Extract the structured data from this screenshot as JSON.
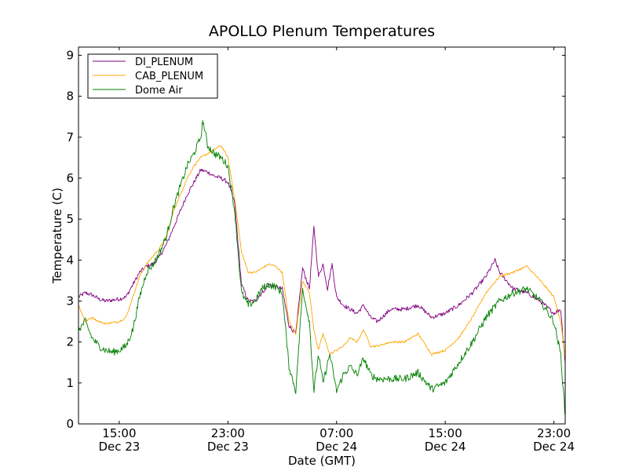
{
  "chart_data": {
    "type": "line",
    "title": "APOLLO Plenum Temperatures",
    "xlabel": "Date (GMT)",
    "ylabel": "Temperature (C)",
    "xlim": [
      "2011-12-23 12:00",
      "2011-12-24 23:50"
    ],
    "ylim": [
      0,
      9.2
    ],
    "yticks": [
      0,
      1,
      2,
      3,
      4,
      5,
      6,
      7,
      8,
      9
    ],
    "xticks": [
      {
        "t": "2011-12-23 15:00",
        "label1": "15:00",
        "label2": "Dec 23"
      },
      {
        "t": "2011-12-23 23:00",
        "label1": "23:00",
        "label2": "Dec 23"
      },
      {
        "t": "2011-12-24 07:00",
        "label1": "07:00",
        "label2": "Dec 24"
      },
      {
        "t": "2011-12-24 15:00",
        "label1": "15:00",
        "label2": "Dec 24"
      },
      {
        "t": "2011-12-24 23:00",
        "label1": "23:00",
        "label2": "Dec 24"
      }
    ],
    "grid": false,
    "legend": {
      "position": "top-left"
    },
    "series": [
      {
        "name": "DI_PLENUM",
        "color": "#800080",
        "points": [
          [
            "2011-12-23 12:00",
            3.1
          ],
          [
            "2011-12-23 12:30",
            3.2
          ],
          [
            "2011-12-23 13:00",
            3.15
          ],
          [
            "2011-12-23 13:30",
            3.05
          ],
          [
            "2011-12-23 14:00",
            3.0
          ],
          [
            "2011-12-23 15:00",
            3.05
          ],
          [
            "2011-12-23 15:30",
            3.1
          ],
          [
            "2011-12-23 16:00",
            3.4
          ],
          [
            "2011-12-23 16:30",
            3.7
          ],
          [
            "2011-12-23 17:00",
            3.85
          ],
          [
            "2011-12-23 17:30",
            3.9
          ],
          [
            "2011-12-23 18:00",
            4.1
          ],
          [
            "2011-12-23 18:30",
            4.4
          ],
          [
            "2011-12-23 19:00",
            4.8
          ],
          [
            "2011-12-23 19:30",
            5.2
          ],
          [
            "2011-12-23 20:00",
            5.6
          ],
          [
            "2011-12-23 20:30",
            5.9
          ],
          [
            "2011-12-23 21:00",
            6.2
          ],
          [
            "2011-12-23 21:30",
            6.15
          ],
          [
            "2011-12-23 22:00",
            6.05
          ],
          [
            "2011-12-23 22:30",
            6.0
          ],
          [
            "2011-12-23 23:00",
            5.9
          ],
          [
            "2011-12-23 23:30",
            5.4
          ],
          [
            "2011-12-24 00:00",
            3.4
          ],
          [
            "2011-12-24 00:30",
            3.0
          ],
          [
            "2011-12-24 01:00",
            3.0
          ],
          [
            "2011-12-24 01:30",
            3.2
          ],
          [
            "2011-12-24 02:00",
            3.4
          ],
          [
            "2011-12-24 02:30",
            3.35
          ],
          [
            "2011-12-24 03:00",
            3.3
          ],
          [
            "2011-12-24 03:30",
            2.4
          ],
          [
            "2011-12-24 04:00",
            2.2
          ],
          [
            "2011-12-24 04:30",
            3.8
          ],
          [
            "2011-12-24 05:00",
            3.3
          ],
          [
            "2011-12-24 05:20",
            4.8
          ],
          [
            "2011-12-24 05:40",
            3.6
          ],
          [
            "2011-12-24 06:00",
            3.9
          ],
          [
            "2011-12-24 06:20",
            3.3
          ],
          [
            "2011-12-24 06:40",
            3.9
          ],
          [
            "2011-12-24 07:00",
            3.1
          ],
          [
            "2011-12-24 07:30",
            2.9
          ],
          [
            "2011-12-24 08:00",
            2.8
          ],
          [
            "2011-12-24 08:30",
            2.7
          ],
          [
            "2011-12-24 09:00",
            2.9
          ],
          [
            "2011-12-24 09:30",
            2.6
          ],
          [
            "2011-12-24 10:00",
            2.5
          ],
          [
            "2011-12-24 11:00",
            2.8
          ],
          [
            "2011-12-24 12:00",
            2.8
          ],
          [
            "2011-12-24 13:00",
            2.9
          ],
          [
            "2011-12-24 14:00",
            2.6
          ],
          [
            "2011-12-24 15:00",
            2.7
          ],
          [
            "2011-12-24 16:00",
            2.9
          ],
          [
            "2011-12-24 17:00",
            3.2
          ],
          [
            "2011-12-24 18:00",
            3.6
          ],
          [
            "2011-12-24 18:40",
            4.0
          ],
          [
            "2011-12-24 19:00",
            3.7
          ],
          [
            "2011-12-24 20:00",
            3.3
          ],
          [
            "2011-12-24 21:00",
            3.2
          ],
          [
            "2011-12-24 22:00",
            3.0
          ],
          [
            "2011-12-24 23:00",
            2.7
          ],
          [
            "2011-12-24 23:30",
            2.8
          ],
          [
            "2011-12-24 23:50",
            1.5
          ]
        ]
      },
      {
        "name": "CAB_PLENUM",
        "color": "#ffa500",
        "points": [
          [
            "2011-12-23 12:00",
            2.9
          ],
          [
            "2011-12-23 12:30",
            2.5
          ],
          [
            "2011-12-23 13:00",
            2.6
          ],
          [
            "2011-12-23 13:30",
            2.5
          ],
          [
            "2011-12-23 14:00",
            2.45
          ],
          [
            "2011-12-23 15:00",
            2.5
          ],
          [
            "2011-12-23 15:30",
            2.6
          ],
          [
            "2011-12-23 16:00",
            3.1
          ],
          [
            "2011-12-23 16:30",
            3.6
          ],
          [
            "2011-12-23 17:00",
            3.9
          ],
          [
            "2011-12-23 17:30",
            4.1
          ],
          [
            "2011-12-23 18:00",
            4.3
          ],
          [
            "2011-12-23 18:30",
            4.6
          ],
          [
            "2011-12-23 19:00",
            5.2
          ],
          [
            "2011-12-23 19:30",
            5.6
          ],
          [
            "2011-12-23 20:00",
            6.0
          ],
          [
            "2011-12-23 20:30",
            6.3
          ],
          [
            "2011-12-23 21:00",
            6.5
          ],
          [
            "2011-12-23 21:30",
            6.6
          ],
          [
            "2011-12-23 22:00",
            6.7
          ],
          [
            "2011-12-23 22:30",
            6.8
          ],
          [
            "2011-12-23 23:00",
            6.5
          ],
          [
            "2011-12-23 23:30",
            5.5
          ],
          [
            "2011-12-24 00:00",
            4.2
          ],
          [
            "2011-12-24 00:30",
            3.7
          ],
          [
            "2011-12-24 01:00",
            3.7
          ],
          [
            "2011-12-24 01:30",
            3.8
          ],
          [
            "2011-12-24 02:00",
            3.9
          ],
          [
            "2011-12-24 02:30",
            3.85
          ],
          [
            "2011-12-24 03:00",
            3.7
          ],
          [
            "2011-12-24 03:30",
            2.5
          ],
          [
            "2011-12-24 04:00",
            2.2
          ],
          [
            "2011-12-24 04:30",
            3.5
          ],
          [
            "2011-12-24 05:00",
            3.2
          ],
          [
            "2011-12-24 05:20",
            2.3
          ],
          [
            "2011-12-24 05:40",
            1.8
          ],
          [
            "2011-12-24 06:00",
            2.2
          ],
          [
            "2011-12-24 06:30",
            1.7
          ],
          [
            "2011-12-24 07:00",
            1.8
          ],
          [
            "2011-12-24 07:30",
            1.9
          ],
          [
            "2011-12-24 08:00",
            2.1
          ],
          [
            "2011-12-24 08:30",
            2.0
          ],
          [
            "2011-12-24 09:00",
            2.3
          ],
          [
            "2011-12-24 09:30",
            1.9
          ],
          [
            "2011-12-24 10:00",
            1.9
          ],
          [
            "2011-12-24 11:00",
            2.0
          ],
          [
            "2011-12-24 12:00",
            2.0
          ],
          [
            "2011-12-24 13:00",
            2.2
          ],
          [
            "2011-12-24 14:00",
            1.7
          ],
          [
            "2011-12-24 15:00",
            1.8
          ],
          [
            "2011-12-24 16:00",
            2.1
          ],
          [
            "2011-12-24 17:00",
            2.6
          ],
          [
            "2011-12-24 18:00",
            3.2
          ],
          [
            "2011-12-24 19:00",
            3.6
          ],
          [
            "2011-12-24 20:00",
            3.7
          ],
          [
            "2011-12-24 21:00",
            3.85
          ],
          [
            "2011-12-24 22:00",
            3.5
          ],
          [
            "2011-12-24 23:00",
            3.1
          ],
          [
            "2011-12-24 23:30",
            2.5
          ],
          [
            "2011-12-24 23:50",
            1.6
          ]
        ]
      },
      {
        "name": "Dome Air",
        "color": "#008000",
        "points": [
          [
            "2011-12-23 12:00",
            2.3
          ],
          [
            "2011-12-23 12:30",
            2.5
          ],
          [
            "2011-12-23 13:00",
            2.1
          ],
          [
            "2011-12-23 13:30",
            1.9
          ],
          [
            "2011-12-23 14:00",
            1.8
          ],
          [
            "2011-12-23 14:30",
            1.75
          ],
          [
            "2011-12-23 15:00",
            1.8
          ],
          [
            "2011-12-23 15:30",
            1.9
          ],
          [
            "2011-12-23 16:00",
            2.3
          ],
          [
            "2011-12-23 16:30",
            3.1
          ],
          [
            "2011-12-23 17:00",
            3.7
          ],
          [
            "2011-12-23 17:30",
            3.9
          ],
          [
            "2011-12-23 18:00",
            4.2
          ],
          [
            "2011-12-23 18:30",
            4.6
          ],
          [
            "2011-12-23 19:00",
            5.3
          ],
          [
            "2011-12-23 19:30",
            5.8
          ],
          [
            "2011-12-23 20:00",
            6.3
          ],
          [
            "2011-12-23 20:30",
            6.6
          ],
          [
            "2011-12-23 21:00",
            7.0
          ],
          [
            "2011-12-23 21:10",
            7.4
          ],
          [
            "2011-12-23 21:30",
            6.8
          ],
          [
            "2011-12-23 22:00",
            6.6
          ],
          [
            "2011-12-23 22:30",
            6.5
          ],
          [
            "2011-12-23 23:00",
            6.3
          ],
          [
            "2011-12-23 23:30",
            5.2
          ],
          [
            "2011-12-24 00:00",
            3.2
          ],
          [
            "2011-12-24 00:30",
            2.9
          ],
          [
            "2011-12-24 01:00",
            3.0
          ],
          [
            "2011-12-24 01:30",
            3.3
          ],
          [
            "2011-12-24 02:00",
            3.4
          ],
          [
            "2011-12-24 02:30",
            3.35
          ],
          [
            "2011-12-24 03:00",
            3.2
          ],
          [
            "2011-12-24 03:30",
            1.4
          ],
          [
            "2011-12-24 04:00",
            0.8
          ],
          [
            "2011-12-24 04:30",
            3.3
          ],
          [
            "2011-12-24 05:00",
            2.5
          ],
          [
            "2011-12-24 05:20",
            0.8
          ],
          [
            "2011-12-24 05:40",
            1.7
          ],
          [
            "2011-12-24 06:00",
            1.0
          ],
          [
            "2011-12-24 06:30",
            1.7
          ],
          [
            "2011-12-24 07:00",
            0.8
          ],
          [
            "2011-12-24 07:30",
            1.2
          ],
          [
            "2011-12-24 08:00",
            1.4
          ],
          [
            "2011-12-24 08:30",
            1.2
          ],
          [
            "2011-12-24 09:00",
            1.6
          ],
          [
            "2011-12-24 09:30",
            1.2
          ],
          [
            "2011-12-24 10:00",
            1.1
          ],
          [
            "2011-12-24 11:00",
            1.1
          ],
          [
            "2011-12-24 12:00",
            1.1
          ],
          [
            "2011-12-24 13:00",
            1.25
          ],
          [
            "2011-12-24 14:00",
            0.85
          ],
          [
            "2011-12-24 15:00",
            1.0
          ],
          [
            "2011-12-24 16:00",
            1.5
          ],
          [
            "2011-12-24 17:00",
            2.0
          ],
          [
            "2011-12-24 18:00",
            2.6
          ],
          [
            "2011-12-24 19:00",
            3.0
          ],
          [
            "2011-12-24 20:00",
            3.2
          ],
          [
            "2011-12-24 21:00",
            3.3
          ],
          [
            "2011-12-24 22:00",
            3.0
          ],
          [
            "2011-12-24 23:00",
            2.5
          ],
          [
            "2011-12-24 23:30",
            1.7
          ],
          [
            "2011-12-24 23:50",
            0.2
          ]
        ]
      }
    ]
  }
}
